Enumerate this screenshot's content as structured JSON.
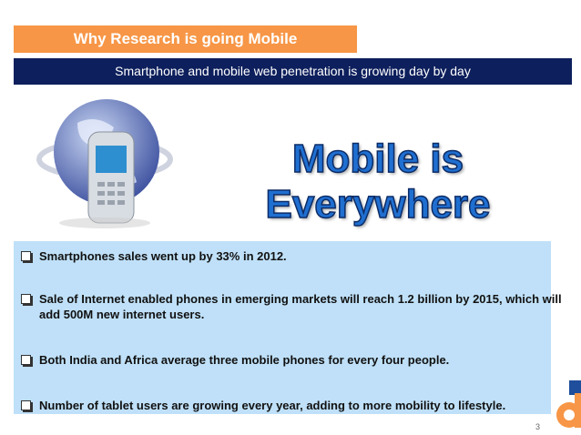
{
  "header": {
    "title": "Why Research is going Mobile",
    "subtitle": "Smartphone and mobile web penetration is growing day by day"
  },
  "hero": {
    "title": "Mobile is Everywhere"
  },
  "bullets": [
    "Smartphones sales went up by 33% in 2012.",
    "Sale of Internet enabled phones in emerging markets will reach 1.2 billion by 2015, which will add 500M new internet users.",
    "Both India and Africa average three mobile phones for every four people.",
    "Number of tablet users are growing every year, adding to more mobility to lifestyle."
  ],
  "page_number": "3"
}
